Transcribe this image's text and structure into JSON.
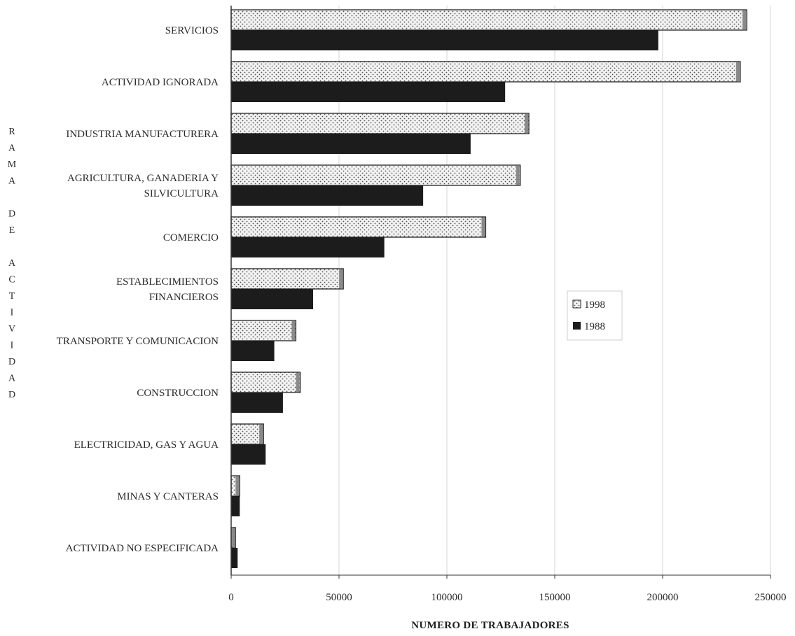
{
  "chart_data": {
    "type": "bar",
    "orientation": "horizontal",
    "categories": [
      "SERVICIOS",
      "ACTIVIDAD IGNORADA",
      "INDUSTRIA MANUFACTURERA",
      "AGRICULTURA, GANADERIA Y SILVICULTURA",
      "COMERCIO",
      "ESTABLECIMIENTOS FINANCIEROS",
      "TRANSPORTE Y COMUNICACION",
      "CONSTRUCCION",
      "ELECTRICIDAD, GAS Y AGUA",
      "MINAS Y CANTERAS",
      "ACTIVIDAD NO ESPECIFICADA"
    ],
    "category_label_lines": [
      [
        "SERVICIOS"
      ],
      [
        "ACTIVIDAD IGNORADA"
      ],
      [
        "INDUSTRIA MANUFACTURERA"
      ],
      [
        "AGRICULTURA, GANADERIA Y",
        "SILVICULTURA"
      ],
      [
        "COMERCIO"
      ],
      [
        "ESTABLECIMIENTOS",
        "FINANCIEROS"
      ],
      [
        "TRANSPORTE Y COMUNICACION"
      ],
      [
        "CONSTRUCCION"
      ],
      [
        "ELECTRICIDAD, GAS Y AGUA"
      ],
      [
        "MINAS Y CANTERAS"
      ],
      [
        "ACTIVIDAD NO ESPECIFICADA"
      ]
    ],
    "series": [
      {
        "name": "1998",
        "pattern": "dotted",
        "values": [
          239000,
          236000,
          138000,
          134000,
          118000,
          52000,
          30000,
          32000,
          15000,
          4000,
          2000
        ]
      },
      {
        "name": "1988",
        "pattern": "solid",
        "values": [
          198000,
          127000,
          111000,
          89000,
          71000,
          38000,
          20000,
          24000,
          16000,
          4000,
          3000
        ]
      }
    ],
    "xlim": [
      0,
      250000
    ],
    "xticks": [
      0,
      50000,
      100000,
      150000,
      200000,
      250000
    ],
    "xlabel": "NUMERO DE TRABAJADORES",
    "ylabel": "RAMA DE ACTIVIDAD",
    "ylabel_letters": [
      "R",
      "A",
      "M",
      "A",
      "",
      "D",
      "E",
      "",
      "A",
      "C",
      "T",
      "I",
      "V",
      "I",
      "D",
      "A",
      "D"
    ],
    "legend": {
      "position": "right-center",
      "entries": [
        "1998",
        "1988"
      ]
    },
    "grid": {
      "x": true,
      "y": false
    },
    "colors": {
      "solid": "#1c1c1c",
      "dotted_bg": "#f2f2f2",
      "dotted_dot": "#555555",
      "grid": "#d4d4d4",
      "axis": "#333333"
    }
  }
}
